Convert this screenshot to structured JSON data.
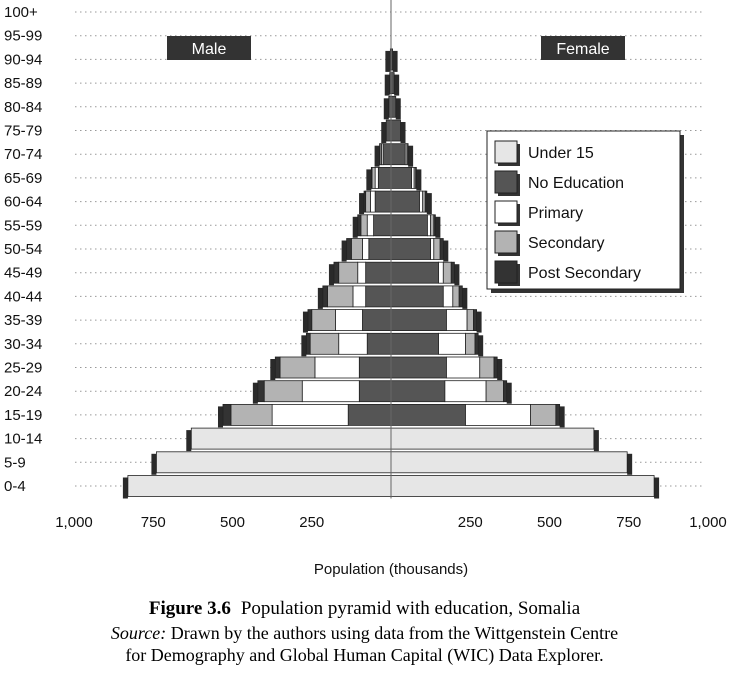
{
  "caption": {
    "figure_label": "Figure 3.6",
    "figure_title": "Population pyramid with education, Somalia",
    "source_label": "Source:",
    "source_line1": "Drawn by the authors using data from the Wittgenstein Centre",
    "source_line2": "for Demography and Global Human Capital (WIC) Data Explorer."
  },
  "chart_data": {
    "type": "bar",
    "subtype": "population-pyramid",
    "xlabel": "Population (thousands)",
    "x_ticks": [
      "1,000",
      "750",
      "500",
      "250",
      "",
      "250",
      "500",
      "750",
      "1,000"
    ],
    "xlim": [
      -1000,
      1000
    ],
    "grid": "dotted horizontal",
    "sides": {
      "left": "Male",
      "right": "Female"
    },
    "legend": {
      "placement": "right",
      "entries": [
        "Under 15",
        "No Education",
        "Primary",
        "Secondary",
        "Post Secondary"
      ]
    },
    "colors": {
      "Under 15": "#e6e6e6",
      "No Education": "#555555",
      "Primary": "#ffffff",
      "Secondary": "#b3b3b3",
      "Post Secondary": "#333333"
    },
    "categories": [
      "0-4",
      "5-9",
      "10-14",
      "15-19",
      "20-24",
      "25-29",
      "30-34",
      "35-39",
      "40-44",
      "45-49",
      "50-54",
      "55-59",
      "60-64",
      "65-69",
      "70-74",
      "75-79",
      "80-84",
      "85-89",
      "90-94",
      "95-99",
      "100+"
    ],
    "male": [
      {
        "under15": 830
      },
      {
        "under15": 740
      },
      {
        "under15": 630
      },
      {
        "noedu": 135,
        "primary": 240,
        "secondary": 130,
        "post": 25
      },
      {
        "noedu": 100,
        "primary": 180,
        "secondary": 120,
        "post": 20
      },
      {
        "noedu": 100,
        "primary": 140,
        "secondary": 110,
        "post": 15
      },
      {
        "noedu": 75,
        "primary": 90,
        "secondary": 90,
        "post": 12
      },
      {
        "noedu": 90,
        "primary": 85,
        "secondary": 75,
        "post": 12
      },
      {
        "noedu": 80,
        "primary": 40,
        "secondary": 80,
        "post": 15
      },
      {
        "noedu": 80,
        "primary": 25,
        "secondary": 60,
        "post": 15
      },
      {
        "noedu": 70,
        "primary": 20,
        "secondary": 35,
        "post": 15
      },
      {
        "noedu": 55,
        "primary": 20,
        "secondary": 20,
        "post": 10
      },
      {
        "noedu": 50,
        "primary": 15,
        "secondary": 15,
        "post": 5
      },
      {
        "noedu": 40,
        "primary": 10,
        "secondary": 10,
        "post": 2
      },
      {
        "noedu": 25,
        "primary": 5,
        "secondary": 5,
        "post": 1
      },
      {
        "noedu": 15
      },
      {
        "noedu": 7
      },
      {
        "noedu": 4
      },
      {
        "noedu": 2
      },
      {
        "noedu": 0
      },
      {
        "noedu": 0
      }
    ],
    "female": [
      {
        "under15": 830
      },
      {
        "under15": 745
      },
      {
        "under15": 640
      },
      {
        "noedu": 235,
        "primary": 205,
        "secondary": 80,
        "post": 12
      },
      {
        "noedu": 170,
        "primary": 130,
        "secondary": 55,
        "post": 10
      },
      {
        "noedu": 175,
        "primary": 105,
        "secondary": 45,
        "post": 10
      },
      {
        "noedu": 150,
        "primary": 85,
        "secondary": 30,
        "post": 10
      },
      {
        "noedu": 175,
        "primary": 65,
        "secondary": 20,
        "post": 10
      },
      {
        "noedu": 165,
        "primary": 30,
        "secondary": 20,
        "post": 10
      },
      {
        "noedu": 150,
        "primary": 15,
        "secondary": 25,
        "post": 10
      },
      {
        "noedu": 125,
        "primary": 10,
        "secondary": 20,
        "post": 10
      },
      {
        "noedu": 115,
        "primary": 10,
        "secondary": 10,
        "post": 5
      },
      {
        "noedu": 90,
        "primary": 10,
        "secondary": 8,
        "post": 5
      },
      {
        "noedu": 65,
        "primary": 8,
        "secondary": 5,
        "post": 2
      },
      {
        "noedu": 45,
        "primary": 5,
        "secondary": 3,
        "post": 1
      },
      {
        "noedu": 30
      },
      {
        "noedu": 15
      },
      {
        "noedu": 10
      },
      {
        "noedu": 5
      },
      {
        "noedu": 0
      },
      {
        "noedu": 0
      }
    ]
  }
}
